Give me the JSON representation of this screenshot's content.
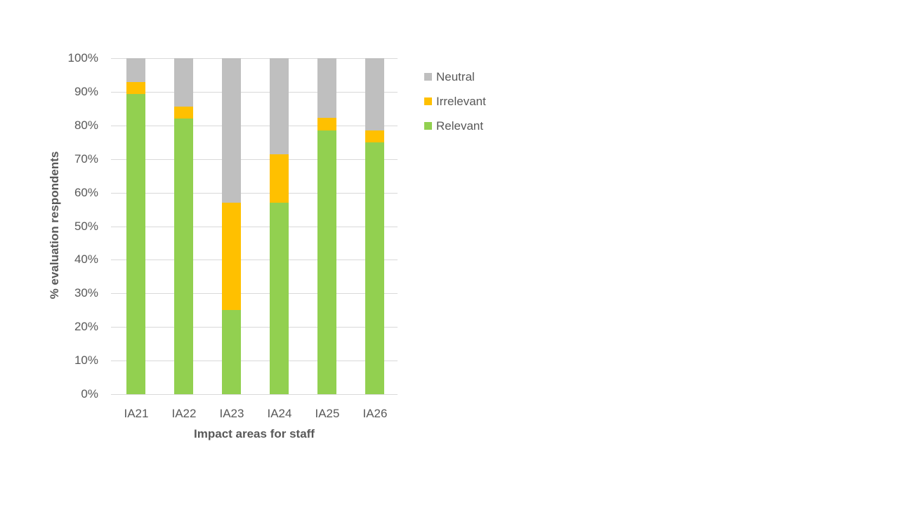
{
  "chart_data": {
    "type": "bar",
    "stacked": true,
    "title": "",
    "xlabel": "Impact areas for staff",
    "ylabel": "% evaluation respondents",
    "ylim": [
      0,
      100
    ],
    "yticks": [
      "0%",
      "10%",
      "20%",
      "30%",
      "40%",
      "50%",
      "60%",
      "70%",
      "80%",
      "90%",
      "100%"
    ],
    "grid": true,
    "legend_position": "right",
    "categories": [
      "IA21",
      "IA22",
      "IA23",
      "IA24",
      "IA25",
      "IA26"
    ],
    "series": [
      {
        "name": "Relevant",
        "color": "#92d050",
        "values": [
          89.3,
          82.1,
          25.0,
          57.1,
          78.6,
          75.0
        ]
      },
      {
        "name": "Irrelevant",
        "color": "#ffc000",
        "values": [
          3.6,
          3.6,
          32.1,
          14.3,
          3.6,
          3.6
        ]
      },
      {
        "name": "Neutral",
        "color": "#bfbfbf",
        "values": [
          7.1,
          14.3,
          42.9,
          28.6,
          17.9,
          21.4
        ]
      }
    ],
    "legend": [
      "Neutral",
      "Irrelevant",
      "Relevant"
    ]
  }
}
